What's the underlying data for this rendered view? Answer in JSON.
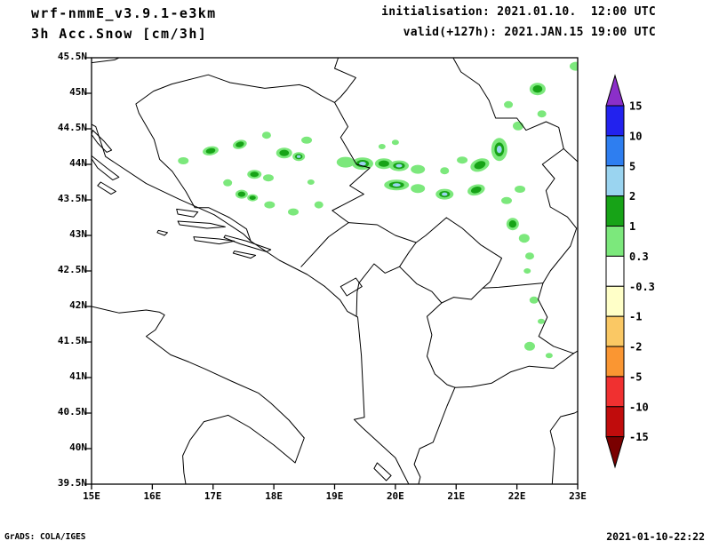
{
  "header": {
    "model": "wrf-nmmE_v3.9.1-e3km",
    "product": "3h Acc.Snow [cm/3h]",
    "init": "initialisation: 2021.01.10.  12:00 UTC",
    "valid": "valid(+127h): 2021.JAN.15 19:00 UTC"
  },
  "footer": {
    "left": "GrADS: COLA/IGES",
    "right": "2021-01-10-22:22"
  },
  "axes": {
    "lat_ticks": [
      "45.5N",
      "45N",
      "44.5N",
      "44N",
      "43.5N",
      "43N",
      "42.5N",
      "42N",
      "41.5N",
      "41N",
      "40.5N",
      "40N",
      "39.5N"
    ],
    "lon_ticks": [
      "15E",
      "16E",
      "17E",
      "18E",
      "19E",
      "20E",
      "21E",
      "22E",
      "23E"
    ]
  },
  "colorbar": {
    "labels": [
      "15",
      "10",
      "5",
      "2",
      "1",
      "0.3",
      "-0.3",
      "-1",
      "-2",
      "-5",
      "-10",
      "-15"
    ],
    "segment_colors": [
      "#8b2fc9",
      "#2222ee",
      "#2e7ef0",
      "#9ad4f0",
      "#17a317",
      "#7ce87c",
      "#ffffff",
      "#ffffc8",
      "#fac864",
      "#fa9632",
      "#f03030",
      "#c00c0c",
      "#7a0000"
    ]
  },
  "chart_data": {
    "type": "filled-contour-map",
    "title": "3h Acc.Snow [cm/3h]",
    "units": "cm/3h",
    "lon_range": [
      15,
      23
    ],
    "lat_range": [
      39.5,
      45.5
    ],
    "levels": [
      -15,
      -10,
      -5,
      -2,
      -1,
      -0.3,
      0.3,
      1,
      2,
      5,
      10,
      15
    ],
    "fill_colors": {
      "light": "#7ce87c",
      "dark": "#17a317",
      "core": "#9ad4f0"
    },
    "cells_format": [
      "lon",
      "lat",
      "rx_px",
      "ry_px",
      "rot_deg",
      "value_cm"
    ],
    "cells": [
      [
        22.97,
        45.38,
        7,
        5,
        0,
        0.5
      ],
      [
        22.34,
        45.06,
        9,
        7,
        0,
        1.5
      ],
      [
        21.86,
        44.84,
        5,
        4,
        0,
        0.5
      ],
      [
        22.41,
        44.71,
        5,
        4,
        0,
        0.5
      ],
      [
        22.02,
        44.54,
        6,
        5,
        0,
        0.5
      ],
      [
        21.71,
        44.21,
        9,
        13,
        0,
        3
      ],
      [
        21.39,
        43.99,
        11,
        7,
        -20,
        1.5
      ],
      [
        18.54,
        44.34,
        6,
        4,
        0,
        0.5
      ],
      [
        17.88,
        44.41,
        5,
        4,
        0,
        0.5
      ],
      [
        18.17,
        44.16,
        9,
        6,
        0,
        1.5
      ],
      [
        18.41,
        44.11,
        7,
        5,
        0,
        3
      ],
      [
        17.44,
        44.28,
        8,
        5,
        -15,
        1.5
      ],
      [
        16.96,
        44.19,
        9,
        5,
        -10,
        1.5
      ],
      [
        16.51,
        44.05,
        6,
        4,
        0,
        0.5
      ],
      [
        19.18,
        44.03,
        10,
        6,
        0,
        0.5
      ],
      [
        19.46,
        44.01,
        12,
        7,
        0,
        3
      ],
      [
        19.81,
        44.01,
        10,
        6,
        0,
        1.5
      ],
      [
        20.06,
        43.98,
        11,
        6,
        0,
        3
      ],
      [
        20.37,
        43.93,
        8,
        5,
        0,
        0.5
      ],
      [
        21.1,
        44.06,
        6,
        4,
        0,
        0.5
      ],
      [
        20.81,
        43.91,
        5,
        4,
        0,
        0.5
      ],
      [
        17.68,
        43.86,
        8,
        5,
        0,
        1.5
      ],
      [
        17.91,
        43.81,
        6,
        4,
        0,
        0.5
      ],
      [
        17.24,
        43.74,
        5,
        4,
        0,
        0.5
      ],
      [
        17.47,
        43.58,
        7,
        5,
        0,
        1.5
      ],
      [
        17.65,
        43.53,
        6,
        4,
        0,
        1.5
      ],
      [
        17.93,
        43.43,
        6,
        4,
        0,
        0.5
      ],
      [
        18.32,
        43.33,
        6,
        4,
        0,
        0.5
      ],
      [
        18.74,
        43.43,
        5,
        4,
        0,
        0.5
      ],
      [
        18.61,
        43.75,
        4,
        3,
        0,
        0.5
      ],
      [
        20.02,
        43.71,
        14,
        6,
        0,
        3
      ],
      [
        20.37,
        43.66,
        8,
        5,
        0,
        0.5
      ],
      [
        20.81,
        43.58,
        10,
        6,
        0,
        3
      ],
      [
        21.33,
        43.64,
        10,
        6,
        -15,
        1.5
      ],
      [
        21.83,
        43.49,
        6,
        4,
        0,
        0.5
      ],
      [
        22.05,
        43.65,
        6,
        4,
        0,
        0.5
      ],
      [
        21.93,
        43.16,
        7,
        7,
        0,
        1.5
      ],
      [
        22.12,
        42.96,
        6,
        5,
        0,
        0.5
      ],
      [
        22.21,
        42.71,
        5,
        4,
        0,
        0.5
      ],
      [
        22.17,
        42.5,
        4,
        3,
        0,
        0.5
      ],
      [
        22.28,
        42.09,
        5,
        4,
        0,
        0.5
      ],
      [
        22.4,
        41.79,
        4,
        3,
        0,
        0.5
      ],
      [
        22.21,
        41.44,
        6,
        5,
        0,
        0.5
      ],
      [
        22.53,
        41.31,
        4,
        3,
        0,
        0.5
      ],
      [
        20.0,
        44.31,
        4,
        3,
        0,
        0.5
      ],
      [
        19.78,
        44.25,
        4,
        3,
        0,
        0.5
      ]
    ]
  }
}
